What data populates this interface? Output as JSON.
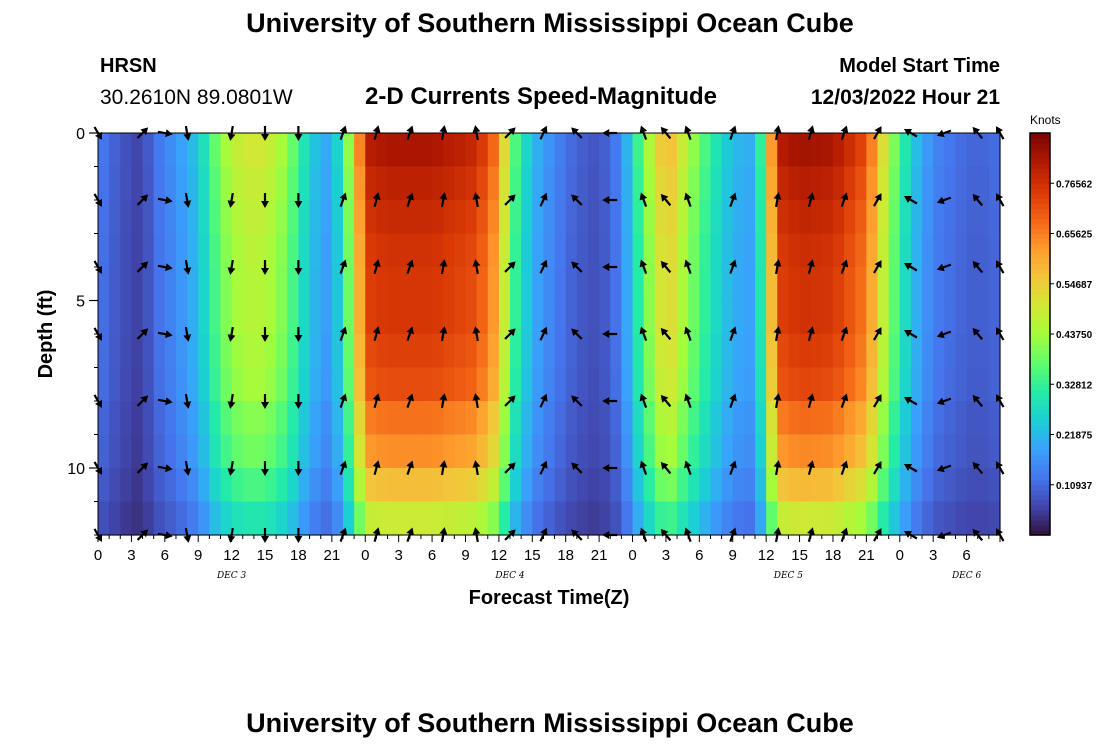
{
  "header": {
    "title": "University of Southern Mississippi Ocean Cube",
    "station": "HRSN",
    "coords": "30.2610N  89.0801W",
    "subtitle": "2-D Currents Speed-Magnitude",
    "model_start_label": "Model Start Time",
    "model_start_value": "12/03/2022 Hour 21"
  },
  "footer": {
    "title": "University of Southern Mississippi Ocean Cube"
  },
  "chart_data": {
    "type": "heatmap",
    "title": "2-D Currents Speed-Magnitude",
    "xlabel": "Forecast Time(Z)",
    "ylabel": "Depth (ft)",
    "ylim": [
      0,
      12
    ],
    "y_inverted": true,
    "y_ticks": [
      0,
      5,
      10
    ],
    "xlim": [
      0,
      81
    ],
    "x_tick_labels": [
      "0",
      "3",
      "6",
      "9",
      "12",
      "15",
      "18",
      "21",
      "0",
      "3",
      "6",
      "9",
      "12",
      "15",
      "18",
      "21",
      "0",
      "3",
      "6",
      "9",
      "12",
      "15",
      "18",
      "21",
      "0",
      "3",
      "6"
    ],
    "date_labels": [
      {
        "label": "DEC 3",
        "hour": 12
      },
      {
        "label": "DEC 4",
        "hour": 37
      },
      {
        "label": "DEC 5",
        "hour": 62
      },
      {
        "label": "DEC 6",
        "hour": 78
      }
    ],
    "colorbar": {
      "label": "Knots",
      "min": 0.0,
      "max": 0.875,
      "ticks": [
        0.10937,
        0.21875,
        0.32812,
        0.4375,
        0.54687,
        0.65625,
        0.76562
      ],
      "tick_labels": [
        "0.10937",
        "0.21875",
        "0.32812",
        "0.43750",
        "0.54687",
        "0.65625",
        "0.76562"
      ],
      "colormap": [
        "#30123b",
        "#4145ab",
        "#4675ed",
        "#39a2fc",
        "#1bcfd4",
        "#24eca6",
        "#61fc6c",
        "#a4fc3b",
        "#d1e834",
        "#f3c63a",
        "#fe9b2d",
        "#f36315",
        "#d93806",
        "#b11901",
        "#7a0403"
      ]
    },
    "speed_profile": {
      "hour": [
        0,
        1.5,
        3,
        4,
        5,
        7,
        9,
        11,
        13,
        15,
        17,
        19,
        21,
        23,
        24,
        26,
        30,
        34,
        36,
        37,
        39,
        41,
        43,
        45,
        47,
        49,
        51,
        53,
        55,
        57,
        59,
        60,
        61,
        63,
        66,
        69,
        71,
        73,
        75,
        77,
        79,
        81
      ],
      "speed": [
        0.14,
        0.1,
        0.07,
        0.06,
        0.12,
        0.17,
        0.24,
        0.42,
        0.5,
        0.5,
        0.42,
        0.25,
        0.18,
        0.5,
        0.8,
        0.82,
        0.82,
        0.78,
        0.65,
        0.4,
        0.22,
        0.15,
        0.1,
        0.08,
        0.15,
        0.4,
        0.6,
        0.45,
        0.32,
        0.22,
        0.2,
        0.45,
        0.8,
        0.83,
        0.82,
        0.72,
        0.45,
        0.25,
        0.15,
        0.12,
        0.1,
        0.12
      ]
    },
    "depth_factor": [
      1.0,
      0.97,
      0.95,
      0.93,
      0.92,
      0.92,
      0.9,
      0.88,
      0.82,
      0.78,
      0.7,
      0.6,
      0.55
    ],
    "vector_hours": [
      0,
      4,
      6,
      8,
      12,
      15,
      18,
      22,
      25,
      28,
      31,
      34,
      37,
      40,
      43,
      46,
      49,
      51,
      53,
      57,
      61,
      64,
      67,
      70,
      73,
      76,
      79,
      81
    ],
    "vector_depths": [
      0,
      2,
      4,
      6,
      8,
      10,
      12
    ],
    "vector_directions_deg": [
      150,
      45,
      100,
      170,
      190,
      180,
      180,
      20,
      15,
      20,
      10,
      350,
      45,
      25,
      315,
      270,
      340,
      320,
      340,
      20,
      10,
      15,
      20,
      30,
      300,
      250,
      320,
      330
    ]
  }
}
